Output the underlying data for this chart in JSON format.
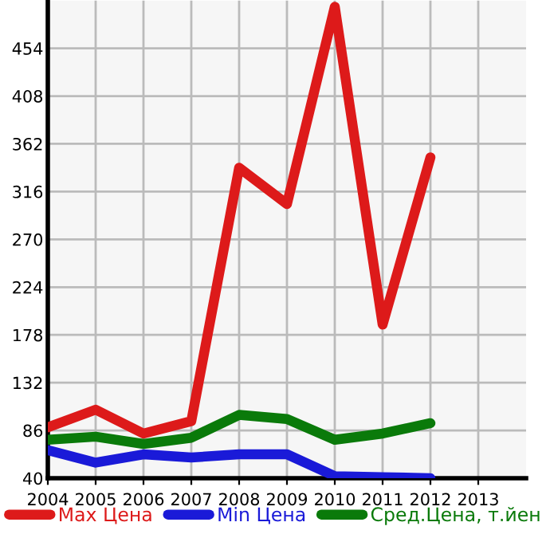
{
  "chart_data": {
    "type": "line",
    "x": [
      2004,
      2005,
      2006,
      2007,
      2008,
      2009,
      2010,
      2011,
      2012
    ],
    "series": [
      {
        "name": "Max Цена",
        "color": "#dd1a1a",
        "values": [
          89,
          106,
          83,
          95,
          339,
          304,
          494,
          188,
          349
        ]
      },
      {
        "name": "Min Цена",
        "color": "#1a1ad8",
        "values": [
          67,
          55,
          63,
          60,
          63,
          63,
          42,
          41,
          40
        ]
      },
      {
        "name": "Сред.Цена, т.йен",
        "color": "#0a7a0a",
        "values": [
          77,
          80,
          73,
          79,
          101,
          97,
          77,
          83,
          93
        ]
      }
    ],
    "xlim": [
      2004,
      2014
    ],
    "xticks": [
      2004,
      2005,
      2006,
      2007,
      2008,
      2009,
      2010,
      2011,
      2012,
      2013
    ],
    "ylim": [
      40,
      500
    ],
    "yticks": [
      40,
      86,
      132,
      178,
      224,
      270,
      316,
      362,
      408,
      454
    ],
    "grid": true,
    "legend": "bottom",
    "marker": "none",
    "line_style": "solid"
  }
}
